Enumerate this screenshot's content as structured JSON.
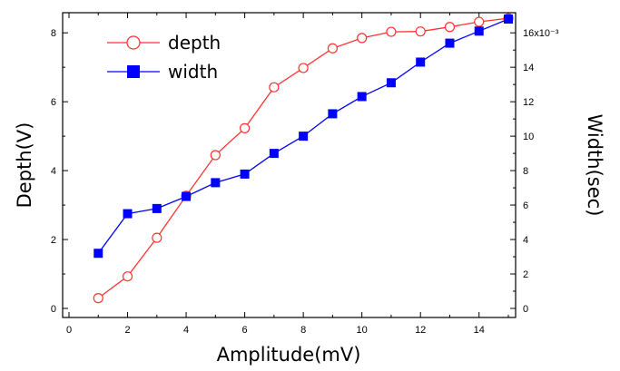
{
  "chart_data": {
    "type": "line",
    "xlabel": "Amplitude(mV)",
    "ylabel": "Depth(V)",
    "y2label": "Width(sec)",
    "x": [
      1,
      2,
      3,
      4,
      5,
      6,
      7,
      8,
      9,
      10,
      11,
      12,
      13,
      14,
      15
    ],
    "xlim": [
      0,
      15
    ],
    "ylim": [
      0,
      8.4
    ],
    "y2lim": [
      0,
      0.0168
    ],
    "x_ticks": [
      "0",
      "2",
      "4",
      "6",
      "8",
      "10",
      "12",
      "14"
    ],
    "y_ticks": [
      "0",
      "2",
      "4",
      "6",
      "8"
    ],
    "y2_ticks": [
      "0",
      "2",
      "4",
      "6",
      "8",
      "10",
      "12",
      "14",
      "16x10⁻³"
    ],
    "grid": false,
    "legend_position": "top-left",
    "series": [
      {
        "name": "depth",
        "axis": "left",
        "color": "#ff3333",
        "marker": "open-circle",
        "values": [
          0.3,
          0.93,
          2.05,
          3.27,
          4.45,
          5.23,
          6.42,
          6.98,
          7.55,
          7.85,
          8.03,
          8.04,
          8.17,
          8.32,
          8.42
        ]
      },
      {
        "name": "width",
        "axis": "right",
        "color": "#0000ff",
        "marker": "filled-square",
        "values": [
          0.0032,
          0.0055,
          0.0058,
          0.0065,
          0.0073,
          0.0078,
          0.009,
          0.01,
          0.0113,
          0.0123,
          0.0131,
          0.0143,
          0.0154,
          0.0161,
          0.0168
        ]
      }
    ]
  }
}
